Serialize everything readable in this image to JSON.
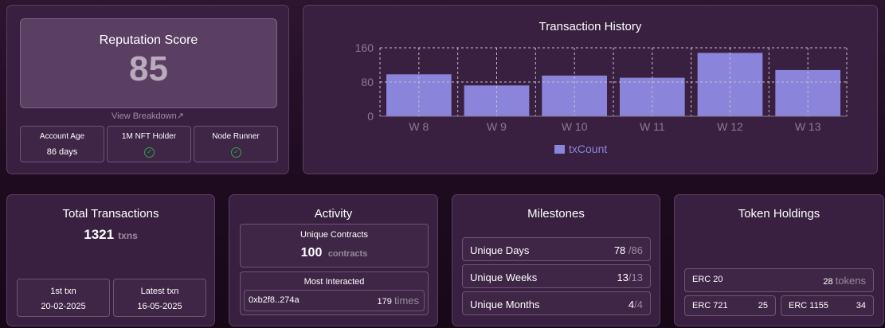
{
  "reputation": {
    "title": "Reputation Score",
    "score": "85",
    "link": "View Breakdown",
    "link_icon": "arrow-up-right-icon",
    "badges": [
      {
        "label": "Account Age",
        "value": "86 days"
      },
      {
        "label": "1M NFT Holder",
        "icon": "check-circle-icon"
      },
      {
        "label": "Node Runner",
        "icon": "check-circle-icon"
      }
    ]
  },
  "history": {
    "title": "Transaction History"
  },
  "chart_data": {
    "type": "bar",
    "title": "Transaction History",
    "categories": [
      "W 8",
      "W 9",
      "W 10",
      "W 11",
      "W 12",
      "W 13"
    ],
    "series": [
      {
        "name": "txCount",
        "values": [
          98,
          72,
          95,
          90,
          148,
          108
        ]
      }
    ],
    "ylim": [
      0,
      160
    ],
    "yticks": [
      0,
      80,
      160
    ],
    "grid": true,
    "legend": "bottom",
    "bar_color": "#8b84db"
  },
  "total": {
    "title": "Total Transactions",
    "count": "1321",
    "unit": "txns",
    "first_label": "1st txn",
    "first_value": "20-02-2025",
    "latest_label": "Latest txn",
    "latest_value": "16-05-2025"
  },
  "activity": {
    "title": "Activity",
    "unique_label": "Unique Contracts",
    "unique_count": "100",
    "unique_unit": "contracts",
    "most_label": "Most Interacted",
    "most_address": "0xb2f8..274a",
    "most_count": "179",
    "most_unit": "times"
  },
  "milestones": {
    "title": "Milestones",
    "rows": [
      {
        "label": "Unique Days",
        "value": "78",
        "total": "/86"
      },
      {
        "label": "Unique Weeks",
        "value": "13",
        "total": "/13"
      },
      {
        "label": "Unique Months",
        "value": "4",
        "total": "/4"
      }
    ]
  },
  "tokens": {
    "title": "Token Holdings",
    "erc20_label": "ERC 20",
    "erc20_value": "28",
    "erc20_unit": "tokens",
    "erc721_label": "ERC 721",
    "erc721_value": "25",
    "erc1155_label": "ERC 1155",
    "erc1155_value": "34"
  }
}
